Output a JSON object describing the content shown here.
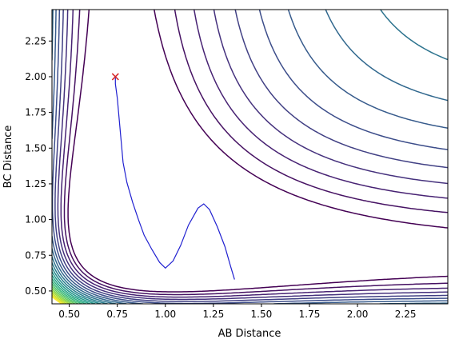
{
  "chart_data": {
    "type": "contour",
    "xlabel": "AB Distance",
    "ylabel": "BC Distance",
    "xlim": [
      0.41,
      2.47
    ],
    "ylim": [
      0.41,
      2.47
    ],
    "xticks": [
      "0.50",
      "0.75",
      "1.00",
      "1.25",
      "1.50",
      "1.75",
      "2.00",
      "2.25"
    ],
    "yticks": [
      "0.50",
      "0.75",
      "1.00",
      "1.25",
      "1.50",
      "1.75",
      "2.00",
      "2.25"
    ],
    "xtick_values": [
      0.5,
      0.75,
      1.0,
      1.25,
      1.5,
      1.75,
      2.0,
      2.25
    ],
    "ytick_values": [
      0.5,
      0.75,
      1.0,
      1.25,
      1.5,
      1.75,
      2.0,
      2.25
    ],
    "grid": false,
    "contour_colormap": "viridis",
    "contour_levels": 22,
    "colors": {
      "trajectory": "#2020d0",
      "start_marker": "#d62728"
    },
    "start_marker": {
      "x": 0.74,
      "y": 2.0,
      "symbol": "x"
    },
    "trajectory": [
      [
        0.74,
        2.0
      ],
      [
        0.74,
        1.95
      ],
      [
        0.75,
        1.85
      ],
      [
        0.76,
        1.7
      ],
      [
        0.77,
        1.55
      ],
      [
        0.78,
        1.4
      ],
      [
        0.8,
        1.26
      ],
      [
        0.83,
        1.12
      ],
      [
        0.86,
        1.0
      ],
      [
        0.89,
        0.89
      ],
      [
        0.93,
        0.79
      ],
      [
        0.97,
        0.7
      ],
      [
        1.0,
        0.66
      ],
      [
        1.04,
        0.71
      ],
      [
        1.08,
        0.82
      ],
      [
        1.12,
        0.96
      ],
      [
        1.17,
        1.08
      ],
      [
        1.2,
        1.11
      ],
      [
        1.23,
        1.07
      ],
      [
        1.27,
        0.95
      ],
      [
        1.31,
        0.81
      ],
      [
        1.34,
        0.67
      ],
      [
        1.36,
        0.58
      ]
    ]
  }
}
